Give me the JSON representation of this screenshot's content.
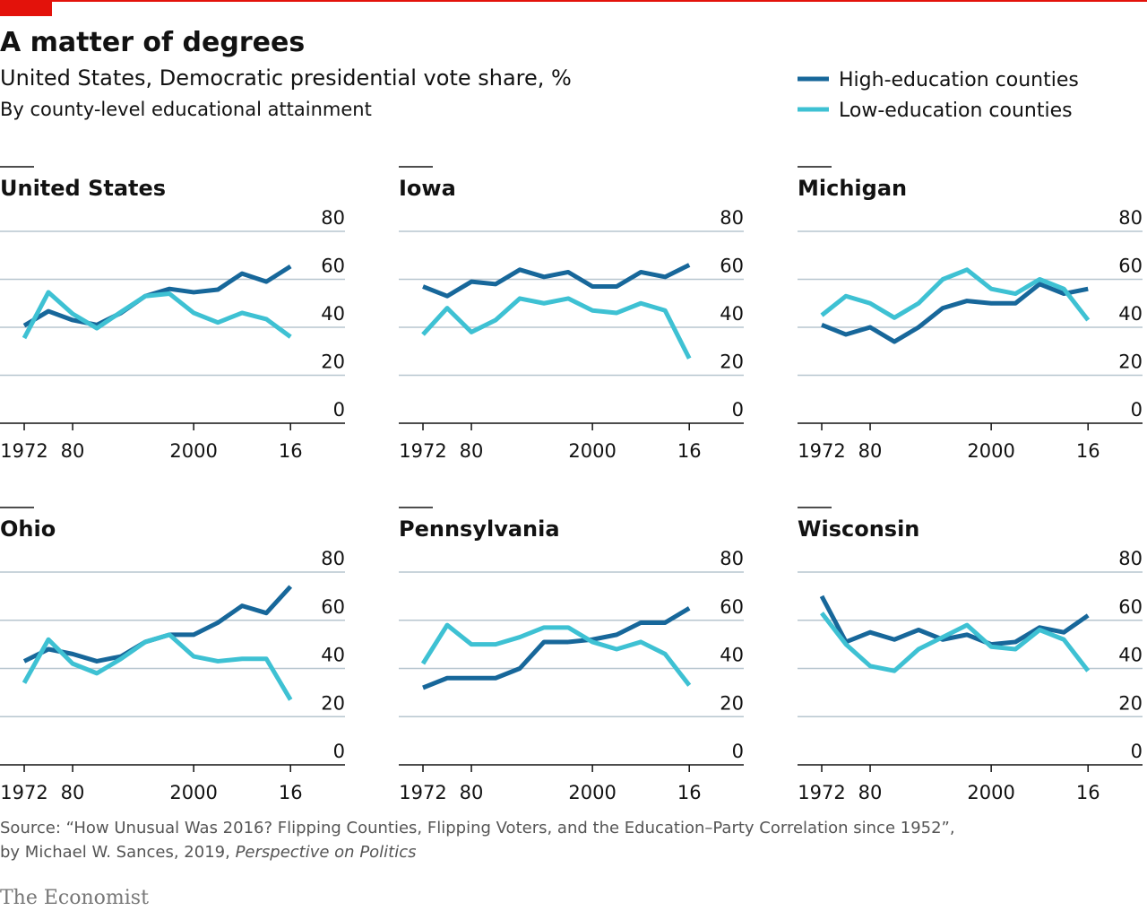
{
  "header": {
    "brand_note": null
  },
  "chart_data": {
    "type": "line",
    "title": "A matter of degrees",
    "subtitle": "United States, Democratic presidential vote share, %",
    "description": "By county-level educational attainment",
    "x": [
      1972,
      1976,
      1980,
      1984,
      1988,
      1992,
      1996,
      2000,
      2004,
      2008,
      2012,
      2016
    ],
    "xlim": [
      1968,
      2025
    ],
    "xticks": [
      1972,
      {
        "value": 1980,
        "label": "80"
      },
      2000,
      {
        "value": 2016,
        "label": "16"
      }
    ],
    "ylim": [
      0,
      80
    ],
    "yticks": [
      0,
      20,
      40,
      60,
      80
    ],
    "grid": true,
    "series": [
      {
        "name": "High-education counties",
        "color": "#17679a"
      },
      {
        "name": "Low-education counties",
        "color": "#3ec1d3"
      }
    ],
    "panels": [
      {
        "title": "United States",
        "series": [
          {
            "values": [
              40.7,
              46.7,
              43,
              41,
              46,
              53,
              56,
              54.6,
              55.7,
              62.4,
              59,
              65.4
            ]
          },
          {
            "values": [
              35.5,
              54.6,
              45.6,
              39.6,
              46.4,
              53,
              54,
              46,
              42,
              46,
              43.4,
              36
            ]
          }
        ]
      },
      {
        "title": "Iowa",
        "series": [
          {
            "values": [
              57,
              53,
              59,
              58,
              64,
              61,
              63,
              57,
              57,
              63,
              61,
              66
            ]
          },
          {
            "values": [
              37,
              48,
              38,
              43,
              52,
              50,
              52,
              47,
              46,
              50,
              47,
              27
            ]
          }
        ]
      },
      {
        "title": "Michigan",
        "series": [
          {
            "values": [
              41,
              37,
              40,
              34,
              40,
              48,
              51,
              50,
              50,
              58,
              54,
              56
            ]
          },
          {
            "values": [
              45,
              53,
              50,
              44,
              50,
              60,
              64,
              56,
              54,
              60,
              56,
              43
            ]
          }
        ]
      },
      {
        "title": "Ohio",
        "series": [
          {
            "values": [
              43,
              48,
              46,
              43,
              45,
              51,
              54,
              54,
              59,
              66,
              63,
              74
            ]
          },
          {
            "values": [
              34,
              52,
              42,
              38,
              44,
              51,
              54,
              45,
              43,
              44,
              44,
              27
            ]
          }
        ]
      },
      {
        "title": "Pennsylvania",
        "series": [
          {
            "values": [
              32,
              36,
              36,
              36,
              40,
              51,
              51,
              52,
              54,
              59,
              59,
              65
            ]
          },
          {
            "values": [
              42,
              58,
              50,
              50,
              53,
              57,
              57,
              51,
              48,
              51,
              46,
              33
            ]
          }
        ]
      },
      {
        "title": "Wisconsin",
        "series": [
          {
            "values": [
              70,
              51,
              55,
              52,
              56,
              52,
              54,
              50,
              51,
              57,
              55,
              62
            ]
          },
          {
            "values": [
              63,
              50,
              41,
              39,
              48,
              53,
              58,
              49,
              48,
              56,
              52,
              39
            ]
          }
        ]
      }
    ]
  },
  "source": {
    "text": "Source: “How Unusual Was 2016? Flipping Counties, Flipping Voters, and the Education–Party Correlation since 1952”,",
    "byline": "by Michael W. Sances, 2019,",
    "publication": "Perspective on Politics"
  },
  "brand": "The Economist"
}
